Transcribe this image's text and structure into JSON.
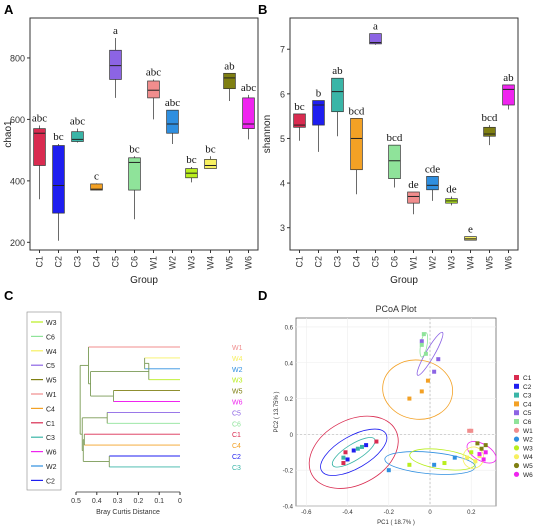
{
  "panels": {
    "a": "A",
    "b": "B",
    "c": "C",
    "d": "D"
  },
  "groups": [
    "C1",
    "C2",
    "C3",
    "C4",
    "C5",
    "C6",
    "W1",
    "W2",
    "W3",
    "W4",
    "W5",
    "W6"
  ],
  "colors": {
    "C1": "#d92b50",
    "C2": "#1e1ef0",
    "C3": "#3ab5a7",
    "C4": "#f3a125",
    "C5": "#8c64e4",
    "C6": "#8fe39a",
    "W1": "#f08d8d",
    "W2": "#2f8fe0",
    "W3": "#b9ee1e",
    "W4": "#f7f060",
    "W5": "#7f7f12",
    "W6": "#ef24ef"
  },
  "chart_data": [
    {
      "type": "box",
      "panel": "A",
      "xlabel": "Group",
      "ylabel": "chao1",
      "ylim": [
        175,
        930
      ],
      "yticks": [
        200,
        400,
        600,
        800
      ],
      "categories": [
        "C1",
        "C2",
        "C3",
        "C4",
        "C5",
        "C6",
        "W1",
        "W2",
        "W3",
        "W4",
        "W5",
        "W6"
      ],
      "letters": [
        "abc",
        "bc",
        "abc",
        "c",
        "a",
        "bc",
        "abc",
        "abc",
        "bc",
        "bc",
        "ab",
        "abc"
      ],
      "boxes": [
        {
          "group": "C1",
          "min": 340,
          "q1": 450,
          "median": 555,
          "q3": 570,
          "max": 580
        },
        {
          "group": "C2",
          "min": 205,
          "q1": 295,
          "median": 385,
          "q3": 515,
          "max": 520
        },
        {
          "group": "C3",
          "min": 525,
          "q1": 528,
          "median": 535,
          "q3": 560,
          "max": 570
        },
        {
          "group": "C4",
          "min": 370,
          "q1": 370,
          "median": 373,
          "q3": 390,
          "max": 392
        },
        {
          "group": "C5",
          "min": 670,
          "q1": 730,
          "median": 775,
          "q3": 825,
          "max": 865
        },
        {
          "group": "C6",
          "min": 275,
          "q1": 370,
          "median": 460,
          "q3": 475,
          "max": 480
        },
        {
          "group": "W1",
          "min": 600,
          "q1": 670,
          "median": 695,
          "q3": 725,
          "max": 730
        },
        {
          "group": "W2",
          "min": 520,
          "q1": 555,
          "median": 585,
          "q3": 630,
          "max": 630
        },
        {
          "group": "W3",
          "min": 395,
          "q1": 410,
          "median": 425,
          "q3": 440,
          "max": 445
        },
        {
          "group": "W4",
          "min": 440,
          "q1": 440,
          "median": 450,
          "q3": 470,
          "max": 480
        },
        {
          "group": "W5",
          "min": 660,
          "q1": 700,
          "median": 735,
          "q3": 750,
          "max": 750
        },
        {
          "group": "W6",
          "min": 535,
          "q1": 570,
          "median": 585,
          "q3": 670,
          "max": 680
        }
      ]
    },
    {
      "type": "box",
      "panel": "B",
      "xlabel": "Group",
      "ylabel": "shannon",
      "ylim": [
        2.5,
        7.7
      ],
      "yticks": [
        3,
        4,
        5,
        6,
        7
      ],
      "categories": [
        "C1",
        "C2",
        "C3",
        "C4",
        "C5",
        "C6",
        "W1",
        "W2",
        "W3",
        "W4",
        "W5",
        "W6"
      ],
      "letters": [
        "bc",
        "b",
        "ab",
        "bcd",
        "a",
        "bcd",
        "de",
        "cde",
        "de",
        "e",
        "bcd",
        "ab"
      ],
      "boxes": [
        {
          "group": "C1",
          "min": 4.95,
          "q1": 5.25,
          "median": 5.3,
          "q3": 5.55,
          "max": 5.55
        },
        {
          "group": "C2",
          "min": 4.7,
          "q1": 5.3,
          "median": 5.75,
          "q3": 5.85,
          "max": 5.85
        },
        {
          "group": "C3",
          "min": 5.05,
          "q1": 5.6,
          "median": 6.05,
          "q3": 6.35,
          "max": 6.35
        },
        {
          "group": "C4",
          "min": 3.75,
          "q1": 4.3,
          "median": 5.0,
          "q3": 5.45,
          "max": 5.45
        },
        {
          "group": "C5",
          "min": 7.1,
          "q1": 7.12,
          "median": 7.15,
          "q3": 7.35,
          "max": 7.35
        },
        {
          "group": "C6",
          "min": 3.9,
          "q1": 4.1,
          "median": 4.5,
          "q3": 4.85,
          "max": 4.85
        },
        {
          "group": "W1",
          "min": 3.3,
          "q1": 3.55,
          "median": 3.7,
          "q3": 3.8,
          "max": 3.8
        },
        {
          "group": "W2",
          "min": 3.6,
          "q1": 3.85,
          "median": 3.95,
          "q3": 4.15,
          "max": 4.15
        },
        {
          "group": "W3",
          "min": 3.5,
          "q1": 3.55,
          "median": 3.6,
          "q3": 3.65,
          "max": 3.7
        },
        {
          "group": "W4",
          "min": 2.72,
          "q1": 2.72,
          "median": 2.75,
          "q3": 2.8,
          "max": 2.8
        },
        {
          "group": "W5",
          "min": 4.85,
          "q1": 5.05,
          "median": 5.1,
          "q3": 5.25,
          "max": 5.3
        },
        {
          "group": "W6",
          "min": 5.65,
          "q1": 5.75,
          "median": 6.1,
          "q3": 6.2,
          "max": 6.2
        }
      ]
    },
    {
      "type": "dendrogram",
      "panel": "C",
      "xlabel": "Bray Curtis Distance",
      "xlim": [
        0.5,
        0.0
      ],
      "xticks": [
        0.5,
        0.4,
        0.3,
        0.2,
        0.1,
        0.0
      ],
      "leaves": [
        "W1",
        "W4",
        "W2",
        "W3",
        "W5",
        "W6",
        "C5",
        "C6",
        "C1",
        "C4",
        "C2",
        "C3"
      ],
      "merges": [
        {
          "a": "W4",
          "b": "W2",
          "height": 0.17
        },
        {
          "a": "W5",
          "b": "W6",
          "height": 0.32
        },
        {
          "a": "W4+W2",
          "b": "W3",
          "height": 0.15
        },
        {
          "a": "C2",
          "b": "C3",
          "height": 0.34
        },
        {
          "a": "W4+W2+W3",
          "b": "W1",
          "height": 0.43
        },
        {
          "a": "W5+W6",
          "b": "W-upper",
          "height": 0.44
        },
        {
          "a": "C5",
          "b": "C6",
          "height": 0.47
        },
        {
          "a": "C1",
          "b": "C4",
          "height": 0.46
        },
        {
          "a": "C1C4",
          "b": "C2C3",
          "height": 0.465
        },
        {
          "a": "C5C6",
          "b": "Cgroup",
          "height": 0.47
        },
        {
          "a": "W",
          "b": "C",
          "height": 0.48
        }
      ],
      "legend": [
        "W3",
        "C6",
        "W4",
        "C5",
        "W5",
        "W1",
        "C4",
        "C1",
        "C3",
        "W6",
        "W2",
        "C2"
      ]
    },
    {
      "type": "scatter",
      "panel": "D",
      "title": "PCoA Plot",
      "xlabel": "PC1 ( 18.7% )",
      "ylabel": "PC2 ( 13.75% )",
      "xlim": [
        -0.65,
        0.32
      ],
      "ylim": [
        -0.4,
        0.65
      ],
      "xticks": [
        -0.6,
        -0.4,
        -0.2,
        0.0,
        0.2
      ],
      "yticks": [
        -0.4,
        -0.2,
        0.0,
        0.2,
        0.4,
        0.6
      ],
      "legend": [
        "C1",
        "C2",
        "C3",
        "C4",
        "C5",
        "C6",
        "W1",
        "W2",
        "W3",
        "W4",
        "W5",
        "W6"
      ],
      "points": [
        {
          "g": "C1",
          "x": -0.41,
          "y": -0.1
        },
        {
          "g": "C1",
          "x": -0.42,
          "y": -0.16
        },
        {
          "g": "C1",
          "x": -0.26,
          "y": -0.04
        },
        {
          "g": "C2",
          "x": -0.4,
          "y": -0.14
        },
        {
          "g": "C2",
          "x": -0.37,
          "y": -0.09
        },
        {
          "g": "C2",
          "x": -0.31,
          "y": -0.06
        },
        {
          "g": "C3",
          "x": -0.42,
          "y": -0.13
        },
        {
          "g": "C3",
          "x": -0.35,
          "y": -0.08
        },
        {
          "g": "C3",
          "x": -0.33,
          "y": -0.07
        },
        {
          "g": "C4",
          "x": -0.04,
          "y": 0.24
        },
        {
          "g": "C4",
          "x": -0.1,
          "y": 0.2
        },
        {
          "g": "C4",
          "x": -0.01,
          "y": 0.3
        },
        {
          "g": "C5",
          "x": -0.04,
          "y": 0.52
        },
        {
          "g": "C5",
          "x": 0.04,
          "y": 0.42
        },
        {
          "g": "C5",
          "x": 0.02,
          "y": 0.35
        },
        {
          "g": "C6",
          "x": -0.04,
          "y": 0.5
        },
        {
          "g": "C6",
          "x": -0.03,
          "y": 0.56
        },
        {
          "g": "C6",
          "x": -0.02,
          "y": 0.45
        },
        {
          "g": "W1",
          "x": 0.19,
          "y": 0.02
        },
        {
          "g": "W1",
          "x": 0.2,
          "y": 0.02
        },
        {
          "g": "W2",
          "x": -0.2,
          "y": -0.2
        },
        {
          "g": "W2",
          "x": 0.02,
          "y": -0.17
        },
        {
          "g": "W2",
          "x": 0.12,
          "y": -0.13
        },
        {
          "g": "W3",
          "x": -0.1,
          "y": -0.17
        },
        {
          "g": "W3",
          "x": 0.07,
          "y": -0.16
        },
        {
          "g": "W3",
          "x": 0.2,
          "y": -0.1
        },
        {
          "g": "W4",
          "x": 0.22,
          "y": -0.15
        },
        {
          "g": "W4",
          "x": 0.24,
          "y": -0.12
        },
        {
          "g": "W4",
          "x": 0.18,
          "y": -0.13
        },
        {
          "g": "W5",
          "x": 0.23,
          "y": -0.05
        },
        {
          "g": "W5",
          "x": 0.25,
          "y": -0.08
        },
        {
          "g": "W5",
          "x": 0.27,
          "y": -0.06
        },
        {
          "g": "W6",
          "x": 0.24,
          "y": -0.11
        },
        {
          "g": "W6",
          "x": 0.26,
          "y": -0.14
        },
        {
          "g": "W6",
          "x": 0.27,
          "y": -0.1
        }
      ]
    }
  ]
}
